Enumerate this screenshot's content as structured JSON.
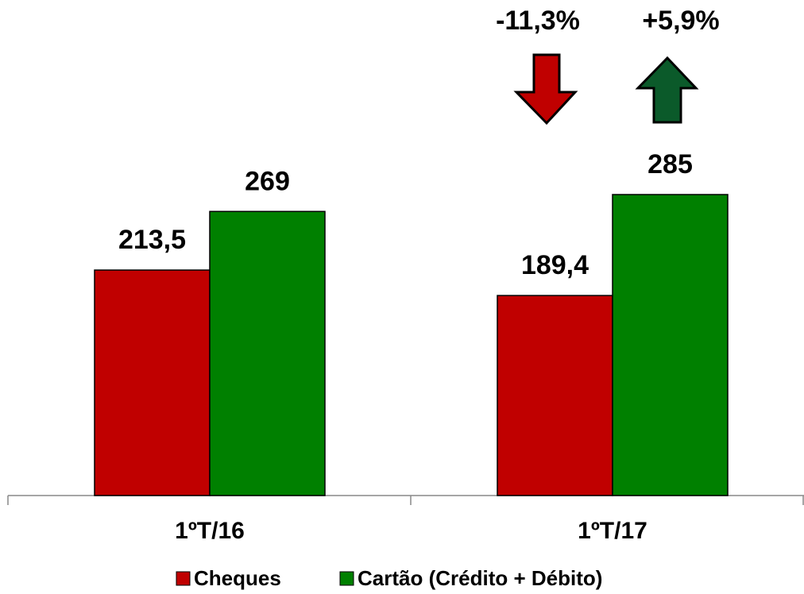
{
  "chart_data": {
    "type": "bar",
    "categories": [
      "1ºT/16",
      "1ºT/17"
    ],
    "series": [
      {
        "name": "Cheques",
        "color": "#c00000",
        "values": [
          213.5,
          189.4
        ],
        "value_labels": [
          "213,5",
          "189,4"
        ]
      },
      {
        "name": "Cartão (Crédito + Débito)",
        "color": "#008000",
        "values": [
          269,
          285
        ]
      }
    ],
    "annotations": [
      "-11,3%",
      "+5,9%"
    ]
  }
}
